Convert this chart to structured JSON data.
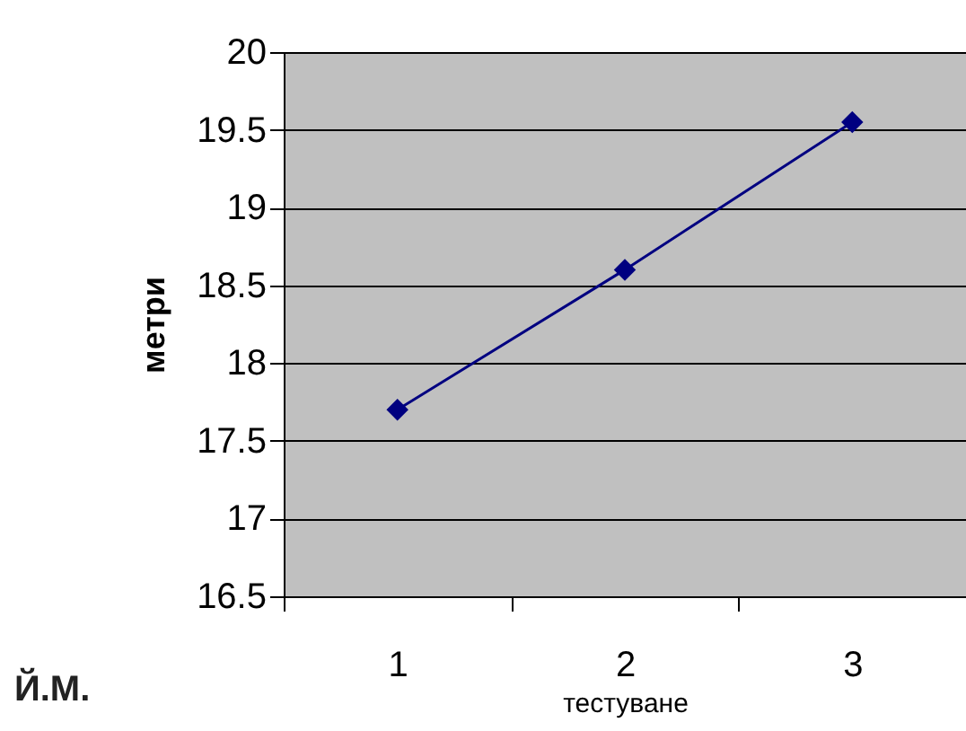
{
  "chart_data": {
    "type": "line",
    "xlabel": "тестуване",
    "ylabel": "метри",
    "categories": [
      "1",
      "2",
      "3"
    ],
    "series": [
      {
        "color": "#000080",
        "values": [
          17.7,
          18.6,
          19.55
        ]
      }
    ],
    "ylim": [
      16.5,
      20
    ],
    "yticks": [
      16.5,
      17,
      17.5,
      18,
      18.5,
      19,
      19.5,
      20
    ],
    "grid": "y",
    "marker": "diamond",
    "line_style": "solid",
    "annotations": [
      "Й.М."
    ]
  }
}
